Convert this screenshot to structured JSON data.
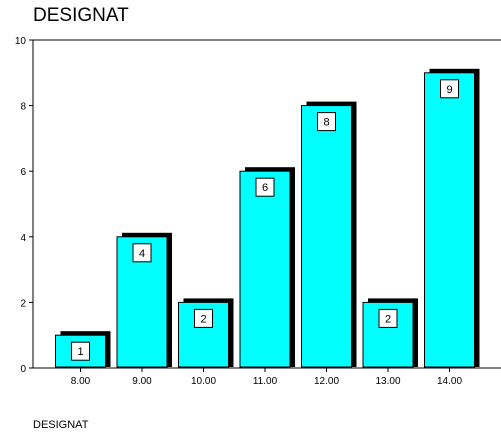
{
  "chart_data": {
    "type": "bar",
    "title": "DESIGNAT",
    "xlabel": "DESIGNAT",
    "ylabel": "",
    "categories": [
      "8.00",
      "9.00",
      "10.00",
      "11.00",
      "12.00",
      "13.00",
      "14.00"
    ],
    "values": [
      1,
      4,
      2,
      6,
      8,
      2,
      9
    ],
    "ylim": [
      0,
      10
    ],
    "yticks": [
      0,
      2,
      4,
      6,
      8,
      10
    ],
    "grid": false,
    "legend": "none",
    "colors": {
      "bar": "#00ffff",
      "shadow": "#000000",
      "label_box": "#ffffff"
    }
  }
}
